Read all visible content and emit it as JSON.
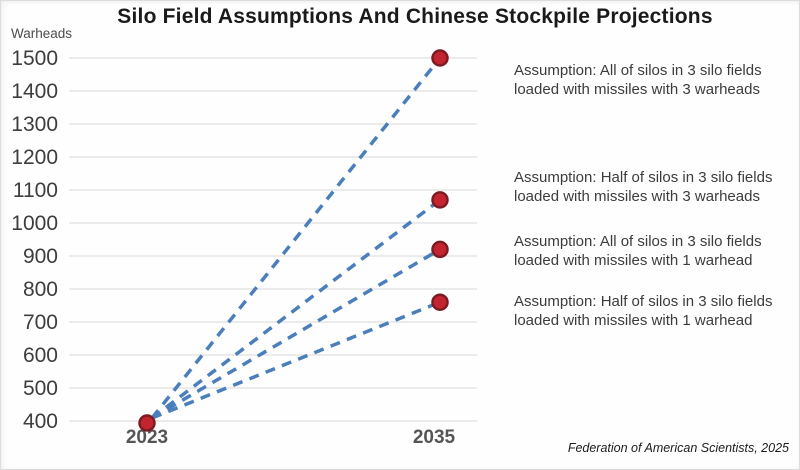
{
  "title": "Silo Field Assumptions And Chinese Stockpile Projections",
  "y_axis_label": "Warheads",
  "attribution": "Federation of American Scientists, 2025",
  "colors": {
    "line_blue": "#4b7fbc",
    "dot_red": "#c42430",
    "dot_border": "#7e1b22",
    "gridline": "#ebebeb",
    "title_text": "#1a1a1a",
    "tick_text": "#3d3d3d",
    "label_text": "#3c3c3c"
  },
  "chart_data": {
    "type": "line",
    "title": "Silo Field Assumptions And Chinese Stockpile Projections",
    "ylabel": "Warheads",
    "xlabel": "",
    "x": [
      2023,
      2035
    ],
    "x_tick_labels": [
      "2023",
      "2035"
    ],
    "y_ticks": [
      1500,
      1400,
      1300,
      1200,
      1100,
      1000,
      900,
      800,
      700,
      600,
      500,
      400
    ],
    "ylim": [
      400,
      1500
    ],
    "grid": true,
    "legend_position": "right-annotations",
    "line_style": "dashed",
    "marker": "red-circle",
    "series": [
      {
        "name": "Assumption: All of silos in 3 silo fields loaded with missiles with 3 warheads",
        "label_lines": [
          "Assumption: All of silos in 3 silo fields",
          "loaded with missiles with 3 warheads"
        ],
        "values": [
          400,
          1500
        ]
      },
      {
        "name": "Assumption: Half of silos in 3 silo fields loaded with missiles with 3 warheads",
        "label_lines": [
          "Assumption: Half of silos in 3 silo fields",
          "loaded with missiles with 3 warheads"
        ],
        "values": [
          400,
          1070
        ]
      },
      {
        "name": "Assumption: All of silos in 3 silo fields loaded with missiles with 1 warhead",
        "label_lines": [
          "Assumption: All of silos in 3 silo fields",
          "loaded with missiles with 1 warhead"
        ],
        "values": [
          400,
          920
        ]
      },
      {
        "name": "Assumption: Half of silos in 3 silo fields loaded with missiles with 1 warhead",
        "label_lines": [
          "Assumption: Half of silos in 3 silo fields",
          "loaded with missiles with 1 warhead"
        ],
        "values": [
          400,
          760
        ]
      }
    ],
    "source": "Federation of American Scientists, 2025"
  }
}
